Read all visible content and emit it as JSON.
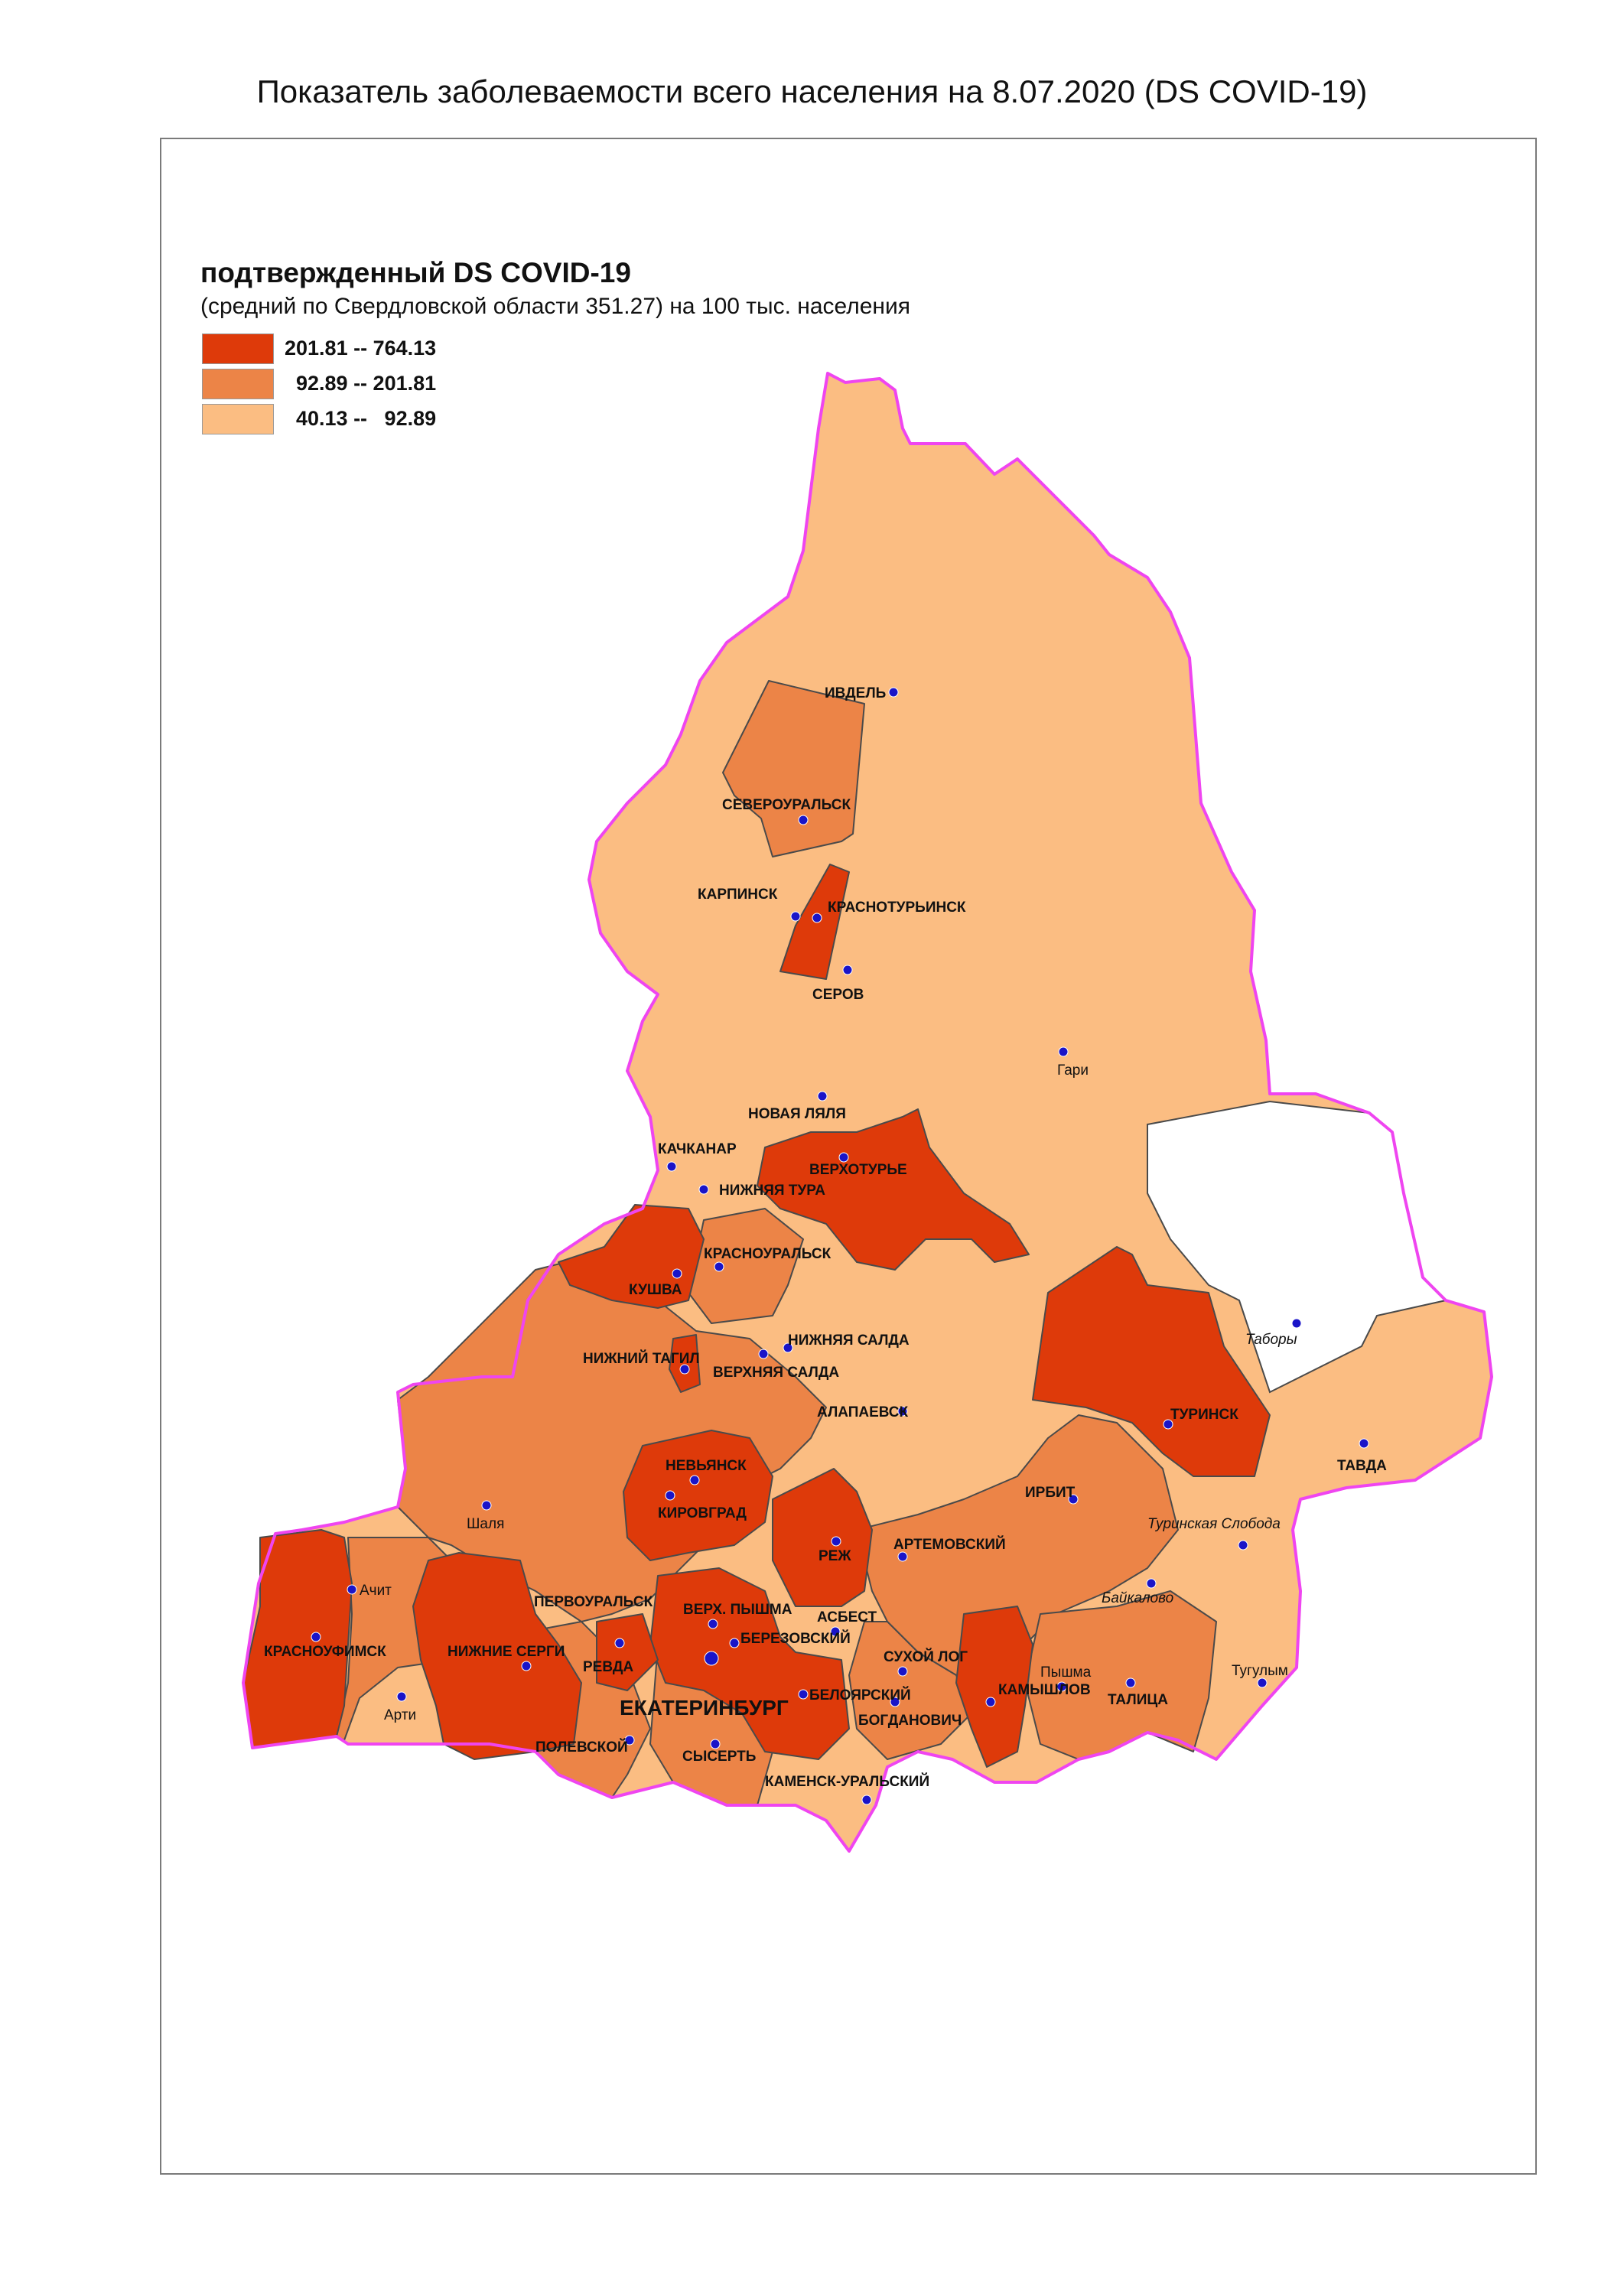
{
  "title": "Показатель заболеваемости всего населения  на 8.07.2020 (DS  COVID-19)",
  "legend": {
    "title": "подтвержденный DS  COVID-19",
    "subtitle": "(средний по Свердловской области 351.27) на 100 тыс. населения",
    "classes": [
      {
        "label": "201.81 -- 764.13",
        "color": "#de3a0a"
      },
      {
        "label": "  92.89 -- 201.81",
        "color": "#ec8447"
      },
      {
        "label": "  40.13 --   92.89",
        "color": "#fbbd82"
      }
    ]
  },
  "colors": {
    "high": "#de3a0a",
    "mid": "#ec8447",
    "low": "#fbbd82",
    "nodata": "#ffffff",
    "region_border": "#ef45f0",
    "district_border": "#4a4a4a",
    "city_marker": "#1a14c8"
  },
  "cities": {
    "ivdel": "ИВДЕЛЬ",
    "severouralsk": "СЕВЕРОУРАЛЬСК",
    "karpinsk": "КАРПИНСК",
    "krasnoturinsk": "КРАСНОТУРЬИНСК",
    "serov": "СЕРОВ",
    "gari": "Гари",
    "novaya_lyalya": "НОВАЯ ЛЯЛЯ",
    "kachkanar": "КАЧКАНАР",
    "verkhoturye": "ВЕРХОТУРЬЕ",
    "nizhnyaya_tura": "НИЖНЯЯ ТУРА",
    "krasnouralsk": "КРАСНОУРАЛЬСК",
    "kushva": "КУШВА",
    "nizhniy_tagil": "НИЖНИЙ ТАГИЛ",
    "nizhnyaya_salda": "НИЖНЯЯ САЛДА",
    "verkhnyaya_salda": "ВЕРХНЯЯ САЛДА",
    "tabory": "Таборы",
    "alapaevsk": "АЛАПАЕВСК",
    "turinsk": "ТУРИНСК",
    "tavda": "ТАВДА",
    "nevyansk": "НЕВЬЯНСК",
    "kirovgrad": "КИРОВГРАД",
    "irbit": "ИРБИТ",
    "shalya": "Шаля",
    "turinskaya_sloboda": "Туринская Слобода",
    "rezh": "РЕЖ",
    "artemovsky": "АРТЕМОВСКИЙ",
    "achit": "Ачит",
    "pervouralsk": "ПЕРВОУРАЛЬСК",
    "verkh_pyshma": "ВЕРХ. ПЫШМА",
    "baikalovo": "Байкалово",
    "asbest": "АСБЕСТ",
    "berezovsky": "БЕРЕЗОВСКИЙ",
    "krasnoufimsk": "КРАСНОУФИМСК",
    "nizhnie_sergi": "НИЖНИЕ СЕРГИ",
    "revda": "РЕВДА",
    "sukhoy_log": "СУХОЙ ЛОГ",
    "tugulym": "Тугулым",
    "kamyshlov": "КАМЫШЛОВ",
    "pyshma": "Пышма",
    "ekaterinburg": "ЕКАТЕРИНБУРГ",
    "beloyarsky": "БЕЛОЯРСКИЙ",
    "talitsa": "ТАЛИЦА",
    "arti": "Арти",
    "bogdanovich": "БОГДАНОВИЧ",
    "polevskoy": "ПОЛЕВСКОЙ",
    "sysert": "СЫСЕРТЬ",
    "kamensk_uralsky": "КАМЕНСК-УРАЛЬСКИЙ"
  }
}
